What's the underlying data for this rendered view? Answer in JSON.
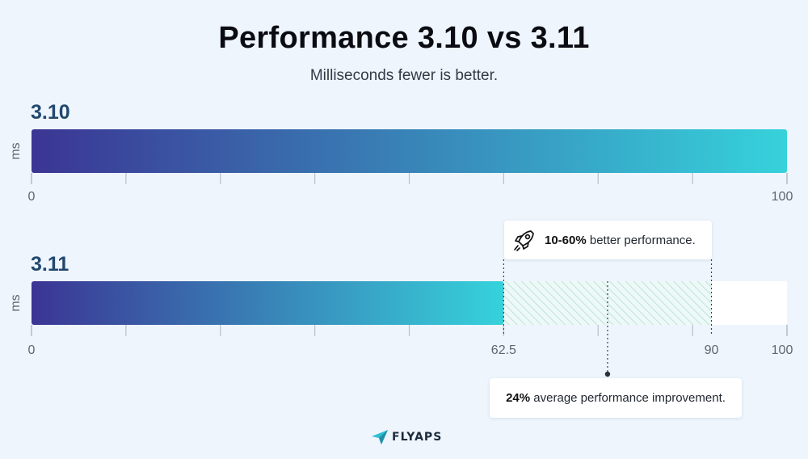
{
  "title": "Performance 3.10 vs 3.11",
  "subtitle": "Milliseconds fewer is better.",
  "colors": {
    "background": "#eef5fd",
    "bar_start": "#3b3594",
    "bar_end": "#36d2db",
    "label_blue": "#22486e",
    "hatch": "#9ed9cf"
  },
  "chart_data": [
    {
      "type": "bar",
      "orientation": "horizontal",
      "category": "3.10",
      "ylabel": "ms",
      "value": 100,
      "xlim": [
        0,
        100
      ],
      "tick_labels": [
        "0",
        "100"
      ]
    },
    {
      "type": "bar",
      "orientation": "horizontal",
      "category": "3.11",
      "ylabel": "ms",
      "value": 62.5,
      "xlim": [
        0,
        100
      ],
      "tick_labels": [
        "0",
        "62.5",
        "90",
        "100"
      ],
      "hatched_range": [
        62.5,
        90
      ],
      "annotations": [
        {
          "bold": "10-60%",
          "text": " better performance.",
          "icon": "rocket-icon",
          "range": [
            62.5,
            90
          ]
        },
        {
          "bold": "24%",
          "text": " average performance improvement."
        }
      ]
    }
  ],
  "logo": {
    "text": "FLYAPS",
    "icon": "paper-plane-icon"
  }
}
